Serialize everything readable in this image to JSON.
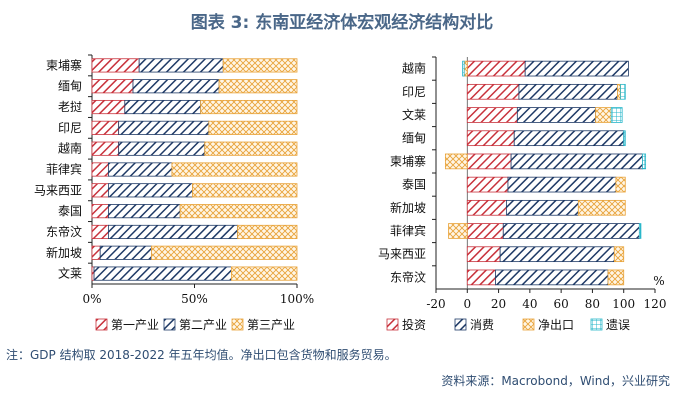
{
  "title": "图表 3:  东南亚经济体宏观经济结构对比",
  "note": "注：GDP 结构取 2018-2022 年五年均值。净出口包含货物和服务贸易。",
  "source": "资料来源：Macrobond，Wind，兴业研究",
  "colors": {
    "red": "#c8323c",
    "navy": "#1f3a66",
    "orange": "#e8a33a",
    "cyan": "#27b6c9"
  },
  "chart_data": [
    {
      "type": "bar",
      "stacked": true,
      "orientation": "horizontal",
      "categories": [
        "柬埔寨",
        "缅甸",
        "老挝",
        "印尼",
        "越南",
        "菲律宾",
        "马来西亚",
        "泰国",
        "东帝汶",
        "新加坡",
        "文莱"
      ],
      "series": [
        {
          "name": "第一产业",
          "pattern": "red-hatch",
          "values": [
            23,
            20,
            16,
            13,
            13,
            8,
            8,
            8,
            8,
            4,
            1
          ]
        },
        {
          "name": "第二产业",
          "pattern": "navy-hatch",
          "values": [
            41,
            42,
            37,
            44,
            42,
            31,
            41,
            35,
            63,
            25,
            67
          ]
        },
        {
          "name": "第三产业",
          "pattern": "orange-cross",
          "values": [
            36,
            38,
            47,
            43,
            45,
            61,
            51,
            57,
            29,
            71,
            32
          ]
        }
      ],
      "xlim": [
        0,
        100
      ],
      "xticks": [
        "0%",
        "50%",
        "100%"
      ],
      "legend": "bottom"
    },
    {
      "type": "bar",
      "stacked": true,
      "orientation": "horizontal",
      "categories": [
        "越南",
        "印尼",
        "文莱",
        "缅甸",
        "柬埔寨",
        "泰国",
        "新加坡",
        "菲律宾",
        "马来西亚",
        "东帝汶"
      ],
      "series": [
        {
          "name": "投资",
          "pattern": "red-hatch",
          "values": [
            37,
            33,
            32,
            30,
            28,
            26,
            25,
            23,
            21,
            18
          ]
        },
        {
          "name": "消费",
          "pattern": "navy-hatch",
          "values": [
            66,
            63,
            50,
            70,
            84,
            69,
            46,
            87,
            73,
            72
          ]
        },
        {
          "name": "净出口",
          "pattern": "orange-cross",
          "values": [
            -2,
            2,
            10,
            0,
            -14,
            6,
            30,
            -12,
            6,
            10
          ]
        },
        {
          "name": "遗误",
          "pattern": "cyan-box",
          "values": [
            -1,
            3,
            7,
            1,
            2,
            0,
            0,
            1,
            0,
            0
          ]
        }
      ],
      "xlim": [
        -20,
        120
      ],
      "xticks": [
        "-20",
        "0",
        "20",
        "40",
        "60",
        "80",
        "100",
        "120"
      ],
      "unit": "%",
      "legend": "bottom"
    }
  ]
}
